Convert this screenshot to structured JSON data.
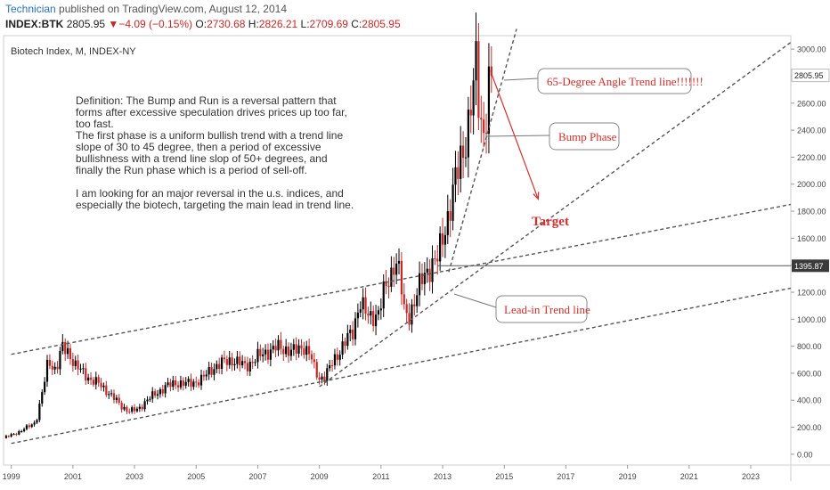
{
  "header": {
    "author": "Technician",
    "published": " published on TradingView.com, August 12, 2014",
    "symbol": "INDEX:BTK",
    "last": "2805.95",
    "arrow": "▼",
    "change": "−4.09 (−0.15%)",
    "open_label": "O:",
    "open": "2730.68",
    "high_label": "H:",
    "high": "2826.21",
    "low_label": "L:",
    "low": "2709.69",
    "close_label": "C:",
    "close": "2805.95"
  },
  "colors": {
    "up": "#000000",
    "down": "#c62828",
    "annotation_red": "#d32f2f",
    "trend_dash": "#555555",
    "price_badge_bg": "#3a3a3a",
    "header_author": "#2a6fb4"
  },
  "chart_data": {
    "type": "candlestick",
    "title": "Biotech Index, M, INDEX-NY",
    "x_range": [
      1998.75,
      2024.3
    ],
    "y_range": [
      -80,
      3100
    ],
    "y_scale": "linear",
    "grid": false,
    "price_axis": "right",
    "x_ticks": [
      "1999",
      "2001",
      "2003",
      "2005",
      "2007",
      "2009",
      "2011",
      "2013",
      "2015",
      "2017",
      "2019",
      "2021",
      "2023"
    ],
    "y_ticks": [
      "0.00",
      "200.00",
      "400.00",
      "600.00",
      "800.00",
      "1000.00",
      "1200.00",
      "1400.00",
      "1600.00",
      "1800.00",
      "2000.00",
      "2200.00",
      "2400.00",
      "2600.00",
      "2800.00",
      "3000.00"
    ],
    "last_price_label": "2805.95",
    "horizontal_level_label": "1395.87",
    "horizontal_level": 1395.87,
    "price_path": [
      [
        1998.75,
        120
      ],
      [
        1999.3,
        170
      ],
      [
        1999.8,
        240
      ],
      [
        2000.05,
        500
      ],
      [
        2000.2,
        700
      ],
      [
        2000.45,
        620
      ],
      [
        2000.65,
        790
      ],
      [
        2000.85,
        760
      ],
      [
        2001.1,
        650
      ],
      [
        2001.35,
        600
      ],
      [
        2001.6,
        550
      ],
      [
        2001.85,
        520
      ],
      [
        2002.1,
        470
      ],
      [
        2002.35,
        410
      ],
      [
        2002.6,
        350
      ],
      [
        2002.85,
        320
      ],
      [
        2003.1,
        330
      ],
      [
        2003.4,
        400
      ],
      [
        2003.7,
        450
      ],
      [
        2004.0,
        500
      ],
      [
        2004.4,
        530
      ],
      [
        2004.8,
        520
      ],
      [
        2005.2,
        560
      ],
      [
        2005.6,
        650
      ],
      [
        2005.9,
        680
      ],
      [
        2006.2,
        700
      ],
      [
        2006.6,
        650
      ],
      [
        2007.0,
        720
      ],
      [
        2007.3,
        760
      ],
      [
        2007.6,
        790
      ],
      [
        2007.9,
        780
      ],
      [
        2008.2,
        760
      ],
      [
        2008.5,
        800
      ],
      [
        2008.7,
        740
      ],
      [
        2008.85,
        620
      ],
      [
        2009.0,
        560
      ],
      [
        2009.2,
        590
      ],
      [
        2009.5,
        700
      ],
      [
        2009.8,
        830
      ],
      [
        2010.1,
        900
      ],
      [
        2010.3,
        1150
      ],
      [
        2010.6,
        1000
      ],
      [
        2010.9,
        1050
      ],
      [
        2011.1,
        1200
      ],
      [
        2011.3,
        1300
      ],
      [
        2011.45,
        1470
      ],
      [
        2011.6,
        1350
      ],
      [
        2011.75,
        1050
      ],
      [
        2011.9,
        1020
      ],
      [
        2012.1,
        1150
      ],
      [
        2012.35,
        1300
      ],
      [
        2012.6,
        1400
      ],
      [
        2012.85,
        1450
      ],
      [
        2013.1,
        1700
      ],
      [
        2013.35,
        1950
      ],
      [
        2013.55,
        2150
      ],
      [
        2013.8,
        2400
      ],
      [
        2014.0,
        2700
      ],
      [
        2014.1,
        2900
      ],
      [
        2014.2,
        2500
      ],
      [
        2014.35,
        2400
      ],
      [
        2014.5,
        2700
      ],
      [
        2014.62,
        2800
      ]
    ],
    "trend_lines": [
      {
        "name": "upper",
        "from": [
          1999.0,
          740
        ],
        "to": [
          2024.3,
          1850
        ]
      },
      {
        "name": "lower",
        "from": [
          1999.0,
          80
        ],
        "to": [
          2024.3,
          1230
        ]
      },
      {
        "name": "lead-in",
        "from": [
          2009.0,
          500
        ],
        "to": [
          2024.3,
          3050
        ]
      },
      {
        "name": "65-degree",
        "from": [
          2013.2,
          1350
        ],
        "to": [
          2015.4,
          3150
        ]
      }
    ],
    "target_arrow": {
      "from": [
        2014.55,
        2840
      ],
      "to": [
        2016.1,
        1890
      ]
    },
    "annotations": {
      "definition": [
        "Definition: The Bump and Run is a reversal pattern that",
        "forms after excessive speculation drives prices up too far,",
        "too fast.",
        "The first phase is a uniform bullish trend with a trend line",
        "slope of 30 to 45 degree, then a period of excessive",
        "bullishness with a trend line slop of 50+ degrees, and",
        "finally the Run phase which is a period of sell-off.",
        "",
        "I am looking for an major reversal in the u.s. indices, and",
        "especially the biotech, targeting the main lead in trend line."
      ],
      "callout_65": "65-Degree Angle Trend line!!!!!!!",
      "callout_bump": "Bump Phase",
      "callout_lead": "Lead-in Trend line",
      "target": "Target"
    }
  }
}
